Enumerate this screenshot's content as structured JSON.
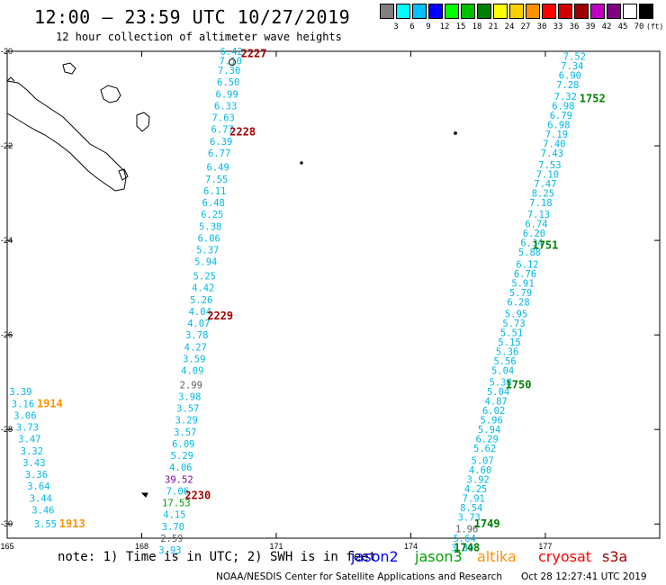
{
  "title": "12:00 – 23:59 UTC 10/27/2019",
  "subtitle": "12 hour collection of altimeter wave heights",
  "legend": {
    "unit": "(ft)",
    "swatches": [
      {
        "label": "3",
        "color": "#808080"
      },
      {
        "label": "6",
        "color": "#00ffff"
      },
      {
        "label": "9",
        "color": "#00c0ff"
      },
      {
        "label": "12",
        "color": "#0000ff"
      },
      {
        "label": "15",
        "color": "#00ff00"
      },
      {
        "label": "18",
        "color": "#00c000"
      },
      {
        "label": "21",
        "color": "#008000"
      },
      {
        "label": "24",
        "color": "#ffff00"
      },
      {
        "label": "27",
        "color": "#ffd000"
      },
      {
        "label": "30",
        "color": "#ff9000"
      },
      {
        "label": "33",
        "color": "#ff0000"
      },
      {
        "label": "36",
        "color": "#d00000"
      },
      {
        "label": "39",
        "color": "#a00000"
      },
      {
        "label": "42",
        "color": "#c000c0"
      },
      {
        "label": "45",
        "color": "#800080"
      },
      {
        "label": "70",
        "color": "#ffffff"
      },
      {
        "label": "",
        "color": "#000000"
      }
    ]
  },
  "axes": {
    "lat_labels": [
      "-20",
      "-22",
      "-24",
      "-26",
      "-28",
      "-30"
    ],
    "lon_labels": [
      "165",
      "168",
      "171",
      "174",
      "177"
    ]
  },
  "tracks": [
    {
      "satellite": "s3a",
      "points": [
        {
          "v": "6.42",
          "lon": 170.0,
          "lat": -20.0
        },
        {
          "v": "7.10",
          "lon": 169.98,
          "lat": -20.2
        },
        {
          "v": "7.30",
          "lon": 169.95,
          "lat": -20.4
        },
        {
          "v": "6.50",
          "lon": 169.93,
          "lat": -20.65
        },
        {
          "v": "6.99",
          "lon": 169.9,
          "lat": -20.9
        },
        {
          "v": "6.33",
          "lon": 169.87,
          "lat": -21.15
        },
        {
          "v": "7.63",
          "lon": 169.82,
          "lat": -21.4
        },
        {
          "v": "6.77",
          "lon": 169.8,
          "lat": -21.65
        },
        {
          "v": "6.39",
          "lon": 169.77,
          "lat": -21.9
        },
        {
          "v": "6.77",
          "lon": 169.73,
          "lat": -22.15
        },
        {
          "v": "6.49",
          "lon": 169.7,
          "lat": -22.45
        },
        {
          "v": "7.55",
          "lon": 169.67,
          "lat": -22.7
        },
        {
          "v": "6.11",
          "lon": 169.63,
          "lat": -22.95
        },
        {
          "v": "6.48",
          "lon": 169.6,
          "lat": -23.2
        },
        {
          "v": "6.25",
          "lon": 169.57,
          "lat": -23.45
        },
        {
          "v": "5.38",
          "lon": 169.53,
          "lat": -23.7
        },
        {
          "v": "6.06",
          "lon": 169.5,
          "lat": -23.95
        },
        {
          "v": "5.37",
          "lon": 169.47,
          "lat": -24.2
        },
        {
          "v": "5.94",
          "lon": 169.43,
          "lat": -24.45
        },
        {
          "v": "5.25",
          "lon": 169.4,
          "lat": -24.75
        },
        {
          "v": "4.42",
          "lon": 169.37,
          "lat": -25.0
        },
        {
          "v": "5.26",
          "lon": 169.33,
          "lat": -25.25
        },
        {
          "v": "4.04",
          "lon": 169.3,
          "lat": -25.5
        },
        {
          "v": "4.07",
          "lon": 169.27,
          "lat": -25.75
        },
        {
          "v": "3.78",
          "lon": 169.23,
          "lat": -26.0
        },
        {
          "v": "4.27",
          "lon": 169.2,
          "lat": -26.25
        },
        {
          "v": "3.59",
          "lon": 169.17,
          "lat": -26.5
        },
        {
          "v": "4.09",
          "lon": 169.13,
          "lat": -26.75
        },
        {
          "v": "2.99",
          "lon": 169.1,
          "lat": -27.05
        },
        {
          "v": "3.98",
          "lon": 169.07,
          "lat": -27.3
        },
        {
          "v": "3.57",
          "lon": 169.03,
          "lat": -27.55
        },
        {
          "v": "3.29",
          "lon": 169.0,
          "lat": -27.8
        },
        {
          "v": "3.57",
          "lon": 168.97,
          "lat": -28.05
        },
        {
          "v": "6.09",
          "lon": 168.93,
          "lat": -28.3
        },
        {
          "v": "5.29",
          "lon": 168.9,
          "lat": -28.55
        },
        {
          "v": "4.06",
          "lon": 168.87,
          "lat": -28.8
        },
        {
          "v": "39.52",
          "lon": 168.83,
          "lat": -29.05
        },
        {
          "v": "7.06",
          "lon": 168.8,
          "lat": -29.3
        },
        {
          "v": "17.53",
          "lon": 168.77,
          "lat": -29.55
        },
        {
          "v": "4.15",
          "lon": 168.73,
          "lat": -29.8
        },
        {
          "v": "3.70",
          "lon": 168.7,
          "lat": -30.05
        },
        {
          "v": "2.59",
          "lon": 168.67,
          "lat": -30.3
        },
        {
          "v": "3.93",
          "lon": 168.63,
          "lat": -30.55
        }
      ]
    },
    {
      "satellite": "jason3",
      "points": [
        {
          "v": "7.52",
          "lon": 177.65,
          "lat": -20.1
        },
        {
          "v": "7.34",
          "lon": 177.6,
          "lat": -20.3
        },
        {
          "v": "6.90",
          "lon": 177.55,
          "lat": -20.5
        },
        {
          "v": "7.28",
          "lon": 177.5,
          "lat": -20.7
        },
        {
          "v": "7.32",
          "lon": 177.45,
          "lat": -20.95
        },
        {
          "v": "6.98",
          "lon": 177.4,
          "lat": -21.15
        },
        {
          "v": "6.79",
          "lon": 177.35,
          "lat": -21.35
        },
        {
          "v": "6.98",
          "lon": 177.3,
          "lat": -21.55
        },
        {
          "v": "7.19",
          "lon": 177.25,
          "lat": -21.75
        },
        {
          "v": "7.40",
          "lon": 177.2,
          "lat": -21.95
        },
        {
          "v": "7.43",
          "lon": 177.15,
          "lat": -22.15
        },
        {
          "v": "7.53",
          "lon": 177.1,
          "lat": -22.4
        },
        {
          "v": "7.10",
          "lon": 177.05,
          "lat": -22.6
        },
        {
          "v": "7.47",
          "lon": 177.0,
          "lat": -22.8
        },
        {
          "v": "8.25",
          "lon": 176.95,
          "lat": -23.0
        },
        {
          "v": "7.18",
          "lon": 176.9,
          "lat": -23.2
        },
        {
          "v": "7.13",
          "lon": 176.85,
          "lat": -23.45
        },
        {
          "v": "6.74",
          "lon": 176.8,
          "lat": -23.65
        },
        {
          "v": "6.20",
          "lon": 176.75,
          "lat": -23.85
        },
        {
          "v": "6.34",
          "lon": 176.7,
          "lat": -24.05
        },
        {
          "v": "5.88",
          "lon": 176.65,
          "lat": -24.25
        },
        {
          "v": "6.12",
          "lon": 176.6,
          "lat": -24.5
        },
        {
          "v": "6.76",
          "lon": 176.55,
          "lat": -24.7
        },
        {
          "v": "5.91",
          "lon": 176.5,
          "lat": -24.9
        },
        {
          "v": "5.79",
          "lon": 176.45,
          "lat": -25.1
        },
        {
          "v": "6.28",
          "lon": 176.4,
          "lat": -25.3
        },
        {
          "v": "5.95",
          "lon": 176.35,
          "lat": -25.55
        },
        {
          "v": "5.73",
          "lon": 176.3,
          "lat": -25.75
        },
        {
          "v": "5.51",
          "lon": 176.25,
          "lat": -25.95
        },
        {
          "v": "5.15",
          "lon": 176.2,
          "lat": -26.15
        },
        {
          "v": "5.36",
          "lon": 176.15,
          "lat": -26.35
        },
        {
          "v": "5.56",
          "lon": 176.1,
          "lat": -26.55
        },
        {
          "v": "5.04",
          "lon": 176.05,
          "lat": -26.75
        },
        {
          "v": "5.38",
          "lon": 176.0,
          "lat": -27.0
        },
        {
          "v": "5.04",
          "lon": 175.95,
          "lat": -27.2
        },
        {
          "v": "4.87",
          "lon": 175.9,
          "lat": -27.4
        },
        {
          "v": "6.02",
          "lon": 175.85,
          "lat": -27.6
        },
        {
          "v": "5.96",
          "lon": 175.8,
          "lat": -27.8
        },
        {
          "v": "5.94",
          "lon": 175.75,
          "lat": -28.0
        },
        {
          "v": "6.29",
          "lon": 175.7,
          "lat": -28.2
        },
        {
          "v": "5.62",
          "lon": 175.65,
          "lat": -28.4
        },
        {
          "v": "5.07",
          "lon": 175.6,
          "lat": -28.65
        },
        {
          "v": "4.60",
          "lon": 175.55,
          "lat": -28.85
        },
        {
          "v": "3.92",
          "lon": 175.5,
          "lat": -29.05
        },
        {
          "v": "4.25",
          "lon": 175.45,
          "lat": -29.25
        },
        {
          "v": "7.91",
          "lon": 175.4,
          "lat": -29.45
        },
        {
          "v": "8.54",
          "lon": 175.35,
          "lat": -29.65
        },
        {
          "v": "3.73",
          "lon": 175.3,
          "lat": -29.85
        },
        {
          "v": "1.96",
          "lon": 175.25,
          "lat": -30.1
        },
        {
          "v": "5.64",
          "lon": 175.2,
          "lat": -30.3
        },
        {
          "v": "3.30",
          "lon": 175.15,
          "lat": -30.5
        }
      ]
    },
    {
      "satellite": "altika",
      "points": [
        {
          "v": "3.39",
          "lon": 165.3,
          "lat": -27.2
        },
        {
          "v": "3.16",
          "lon": 165.35,
          "lat": -27.45
        },
        {
          "v": "3.06",
          "lon": 165.4,
          "lat": -27.7
        },
        {
          "v": "3.73",
          "lon": 165.45,
          "lat": -27.95
        },
        {
          "v": "3.47",
          "lon": 165.5,
          "lat": -28.2
        },
        {
          "v": "3.32",
          "lon": 165.55,
          "lat": -28.45
        },
        {
          "v": "3.43",
          "lon": 165.6,
          "lat": -28.7
        },
        {
          "v": "3.36",
          "lon": 165.65,
          "lat": -28.95
        },
        {
          "v": "3.64",
          "lon": 165.7,
          "lat": -29.2
        },
        {
          "v": "3.44",
          "lon": 165.75,
          "lat": -29.45
        },
        {
          "v": "3.46",
          "lon": 165.8,
          "lat": -29.7
        },
        {
          "v": "3.55",
          "lon": 165.85,
          "lat": -30.0
        }
      ]
    }
  ],
  "time_labels": [
    {
      "text": "2227",
      "color": "#a00000",
      "lon": 170.5,
      "lat": -20.05
    },
    {
      "text": "2228",
      "color": "#a00000",
      "lon": 170.25,
      "lat": -21.7
    },
    {
      "text": "2229",
      "color": "#a00000",
      "lon": 169.75,
      "lat": -25.6
    },
    {
      "text": "2230",
      "color": "#a00000",
      "lon": 169.25,
      "lat": -29.4
    },
    {
      "text": "1752",
      "color": "#008000",
      "lon": 178.05,
      "lat": -21.0
    },
    {
      "text": "1751",
      "color": "#008000",
      "lon": 177.0,
      "lat": -24.1
    },
    {
      "text": "1750",
      "color": "#008000",
      "lon": 176.4,
      "lat": -27.05
    },
    {
      "text": "1749",
      "color": "#008000",
      "lon": 175.7,
      "lat": -30.0
    },
    {
      "text": "1748",
      "color": "#008000",
      "lon": 175.25,
      "lat": -30.5
    },
    {
      "text": "1914",
      "color": "#ff9000",
      "lon": 165.95,
      "lat": -27.45
    },
    {
      "text": "1913",
      "color": "#ff9000",
      "lon": 166.45,
      "lat": -30.0
    }
  ],
  "note": "note: 1) Time is in UTC; 2) SWH is in feet",
  "satellites": [
    {
      "name": "jason2",
      "color": "#0000ff"
    },
    {
      "name": "jason3",
      "color": "#00a000"
    },
    {
      "name": "altika",
      "color": "#ff9000"
    },
    {
      "name": "cryosat",
      "color": "#ff0000"
    },
    {
      "name": "s3a",
      "color": "#a00000"
    }
  ],
  "credit": "NOAA/NESDIS Center for Satellite Applications and Research",
  "timestamp": "Oct 28 12:27:41 UTC 2019"
}
